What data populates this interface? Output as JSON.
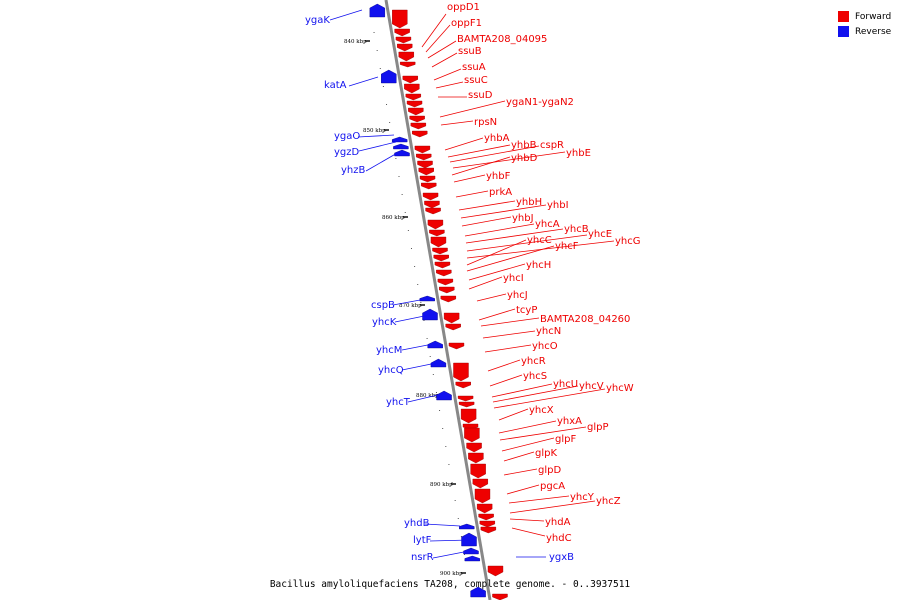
{
  "colors": {
    "forward": "#ee0000",
    "reverse": "#1111ee",
    "backbone": "#888888"
  },
  "legend": [
    {
      "label": "Forward",
      "color": "#ee0000"
    },
    {
      "label": "Reverse",
      "color": "#1111ee"
    }
  ],
  "caption": "Bacillus amyloliquefaciens TA208, complete genome. - 0..3937511",
  "ticks": [
    "840 kbp",
    "850 kbp",
    "860 kbp",
    "870 kbp",
    "880 kbp",
    "890 kbp",
    "900 kbp"
  ],
  "forward_genes": [
    "oppD1",
    "oppF1",
    "BAMTA208_04095",
    "ssuB",
    "ssuA",
    "ssuC",
    "ssuD",
    "ygaN1-ygaN2",
    "rpsN",
    "yhbA",
    "yhbB",
    "cspR",
    "yhbE",
    "yhbD",
    "yhbF",
    "prkA",
    "yhbH",
    "yhbI",
    "yhbJ",
    "yhcA",
    "yhcB",
    "yhcE",
    "yhcG",
    "yhcC",
    "yhcF",
    "yhcH",
    "yhcI",
    "yhcJ",
    "tcyP",
    "BAMTA208_04260",
    "yhcN",
    "yhcO",
    "yhcR",
    "yhcS",
    "yhcU",
    "yhcV",
    "yhcW",
    "yhcX",
    "yhxA",
    "glpP",
    "glpF",
    "glpK",
    "glpD",
    "pgcA",
    "yhcY",
    "yhcZ",
    "yhdA",
    "yhdC"
  ],
  "reverse_genes": [
    "ygaK",
    "katA",
    "ygaO",
    "ygzD",
    "yhzB",
    "cspB",
    "yhcK",
    "yhcM",
    "yhcQ",
    "yhcT",
    "yhdB",
    "lytF",
    "nsrR",
    "ygxB"
  ]
}
